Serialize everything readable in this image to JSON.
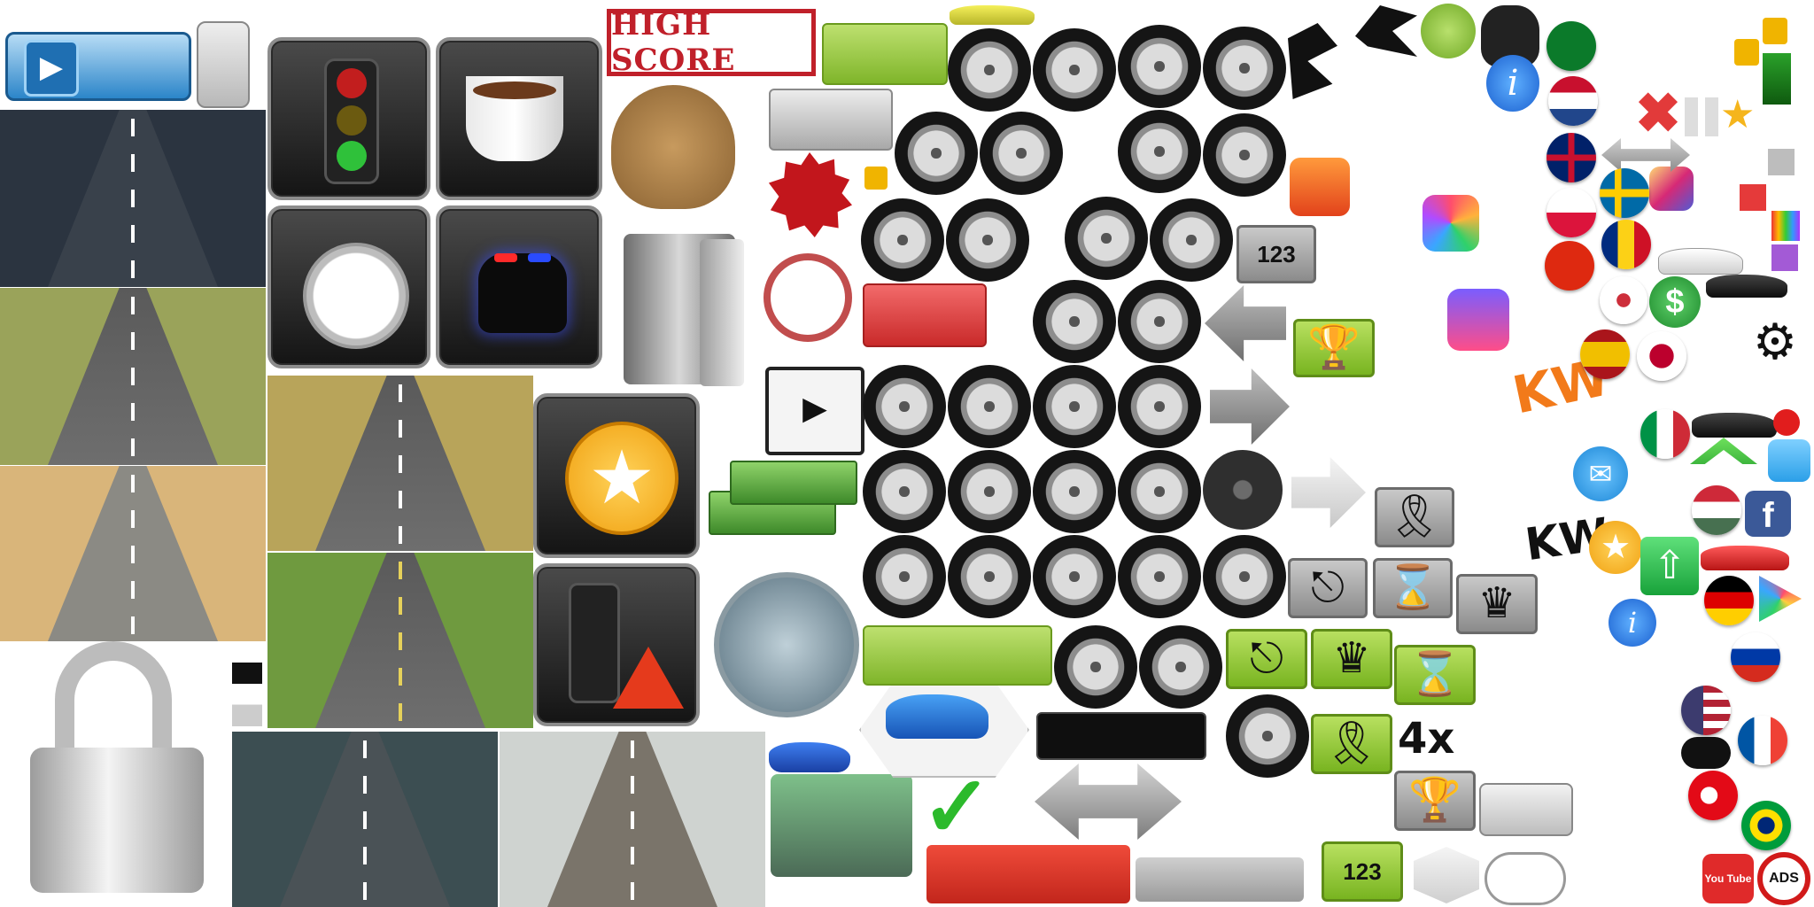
{
  "atlas": {
    "high_score_label": "HIGH SCORE",
    "podium_label": "123",
    "ads_label": "ADS",
    "youtube_label": "You Tube",
    "sticker_kw": "KW",
    "multiplier_label": "4x"
  },
  "colors": {
    "green_button": "#8cc63f",
    "red_button": "#d64541",
    "grey_button": "#a6a6a6",
    "black_bar": "#111111",
    "blue_accent": "#2f7fd6",
    "gold_star": "#f5a623"
  },
  "icons": [
    "play-icon",
    "traffic-light-icon",
    "coffee-cup-icon",
    "stopwatch-icon",
    "police-car-icon",
    "star-icon",
    "traffic-warning-icon",
    "padlock-icon",
    "money-bag-icon",
    "vault-icon",
    "no-sign-icon",
    "clapperboard-icon",
    "cash-stack-icon",
    "trophy-icon",
    "share-icon",
    "hourglass-icon",
    "crown-icon",
    "ribbon-award-icon",
    "arrow-left-icon",
    "arrow-right-icon",
    "double-arrow-icon",
    "checkmark-icon",
    "gear-icon",
    "dollar-icon",
    "info-icon",
    "twitter-icon",
    "facebook-icon",
    "instagram-icon",
    "google-play-icon",
    "gamepad-icon",
    "upload-icon"
  ],
  "flags": [
    "saudi-arabia",
    "netherlands",
    "united-kingdom",
    "poland",
    "sweden",
    "china",
    "romania",
    "south-korea",
    "spain",
    "japan",
    "italy",
    "hungary",
    "germany",
    "russia",
    "usa",
    "france",
    "turkey",
    "brazil"
  ]
}
